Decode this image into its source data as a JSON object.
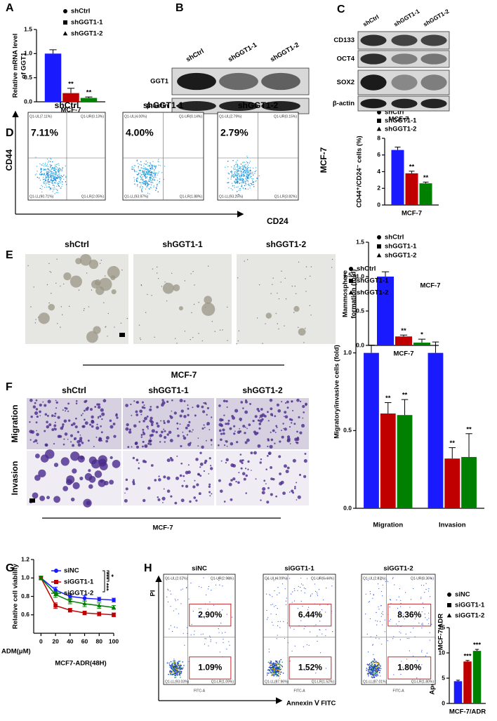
{
  "panel_labels": [
    "A",
    "B",
    "C",
    "D",
    "E",
    "F",
    "G",
    "H"
  ],
  "chart_data": [
    {
      "type": "bar",
      "ylabel": [
        "Relative mRNA level",
        "of GGT1"
      ],
      "categories": [
        "MCF-7"
      ],
      "ylim": [
        0,
        1.5
      ],
      "yticks": [
        {
          "value": 0,
          "label": "0.0"
        },
        0.5,
        {
          "value": 1,
          "label": "1.0"
        },
        1.5
      ],
      "series": [
        {
          "name": "shCtrl",
          "color": "#1a1aff",
          "marker": "circle",
          "values": [
            1.0
          ],
          "errors": [
            0.08
          ],
          "annotations": [
            null
          ]
        },
        {
          "name": "shGGT1-1",
          "color": "#c00000",
          "marker": "square",
          "values": [
            0.18
          ],
          "errors": [
            0.1
          ],
          "annotations": [
            "**"
          ]
        },
        {
          "name": "shGGT1-2",
          "color": "#008000",
          "marker": "triangle",
          "values": [
            0.08
          ],
          "errors": [
            0.02
          ],
          "annotations": [
            "**"
          ]
        }
      ]
    },
    {
      "type": "bar",
      "ylabel": [
        "CD44⁺/CD24⁻ cells (%)"
      ],
      "categories": [
        "MCF-7"
      ],
      "ylim": [
        0,
        8
      ],
      "yticks": [
        0,
        2,
        4,
        6,
        8
      ],
      "series": [
        {
          "name": "shCtrl",
          "color": "#1a1aff",
          "marker": "circle",
          "values": [
            6.6
          ],
          "errors": [
            0.35
          ],
          "annotations": [
            null
          ]
        },
        {
          "name": "shGGT1-1",
          "color": "#c00000",
          "marker": "square",
          "values": [
            3.8
          ],
          "errors": [
            0.25
          ],
          "annotations": [
            "**"
          ]
        },
        {
          "name": "shGGT1-2",
          "color": "#008000",
          "marker": "triangle",
          "values": [
            2.6
          ],
          "errors": [
            0.15
          ],
          "annotations": [
            "**"
          ]
        }
      ]
    },
    {
      "type": "bar",
      "ylabel": [
        "Mammosphere",
        "formation (fold)"
      ],
      "categories": [
        "MCF-7"
      ],
      "ylim": [
        0,
        1.5
      ],
      "yticks": [
        {
          "value": 0,
          "label": "0.0"
        },
        0.5,
        {
          "value": 1,
          "label": "1.0"
        },
        1.5
      ],
      "series": [
        {
          "name": "shCtrl",
          "color": "#1a1aff",
          "marker": "circle",
          "values": [
            1.0
          ],
          "errors": [
            0.07
          ],
          "annotations": [
            null
          ]
        },
        {
          "name": "shGGT1-1",
          "color": "#c00000",
          "marker": "square",
          "values": [
            0.13
          ],
          "errors": [
            0.02
          ],
          "annotations": [
            "**"
          ]
        },
        {
          "name": "shGGT1-2",
          "color": "#008000",
          "marker": "triangle",
          "values": [
            0.04
          ],
          "errors": [
            0.05
          ],
          "annotations": [
            "*"
          ]
        }
      ]
    },
    {
      "type": "bar",
      "ylabel": [
        "Migratory/invasive cells (fold)"
      ],
      "note": "MCF-7",
      "categories": [
        "Migration",
        "Invasion"
      ],
      "ylim": [
        0,
        1.5
      ],
      "yticks": [
        {
          "value": 0,
          "label": "0.0"
        },
        0.5,
        {
          "value": 1,
          "label": "1.0"
        },
        1.5
      ],
      "series": [
        {
          "name": "shCtrl",
          "color": "#1a1aff",
          "marker": "circle",
          "values": [
            1.0,
            1.0
          ],
          "errors": [
            0.05,
            0.07
          ],
          "annotations": [
            null,
            null
          ]
        },
        {
          "name": "shGGT1-1",
          "color": "#c00000",
          "marker": "square",
          "values": [
            0.61,
            0.32
          ],
          "errors": [
            0.07,
            0.07
          ],
          "annotations": [
            "**",
            "**"
          ]
        },
        {
          "name": "shGGT1-2",
          "color": "#008000",
          "marker": "triangle",
          "values": [
            0.6,
            0.33
          ],
          "errors": [
            0.1,
            0.15
          ],
          "annotations": [
            "**",
            "**"
          ]
        }
      ]
    },
    {
      "type": "line",
      "ylabel": [
        "Relative cell viability"
      ],
      "xlabel": "ADM(μM)",
      "subtitle": "MCF7-ADR(48H)",
      "x": [
        0,
        20,
        40,
        60,
        80,
        100
      ],
      "xlim": [
        -10,
        100
      ],
      "xticks": [
        0,
        20,
        40,
        60,
        80,
        100
      ],
      "ylim": [
        0.4,
        1.2
      ],
      "yticks": [
        0.6,
        0.8,
        {
          "value": 1,
          "label": "1.0"
        },
        1.2
      ],
      "annotations": [
        "***",
        "***",
        "*"
      ],
      "series": [
        {
          "name": "siNC",
          "color": "#1a1aff",
          "marker": "circle",
          "values": [
            1.0,
            0.87,
            0.8,
            0.78,
            0.77,
            0.76
          ],
          "errors": [
            0.02,
            0.03,
            0.03,
            0.03,
            0.02,
            0.02
          ]
        },
        {
          "name": "siGGT1-1",
          "color": "#c00000",
          "marker": "square",
          "values": [
            1.0,
            0.7,
            0.65,
            0.62,
            0.61,
            0.6
          ],
          "errors": [
            0.02,
            0.03,
            0.02,
            0.02,
            0.02,
            0.02
          ]
        },
        {
          "name": "siGGT1-2",
          "color": "#008000",
          "marker": "triangle",
          "values": [
            1.0,
            0.82,
            0.75,
            0.72,
            0.7,
            0.68
          ],
          "errors": [
            0.02,
            0.03,
            0.03,
            0.03,
            0.03,
            0.02
          ]
        }
      ]
    },
    {
      "type": "bar",
      "ylabel": [
        "Apoptotic cells(%)"
      ],
      "categories": [
        "MCF-7/ADR"
      ],
      "ylim": [
        0,
        15
      ],
      "yticks": [
        0,
        5,
        10,
        15
      ],
      "series": [
        {
          "name": "siNC",
          "color": "#1a1aff",
          "marker": "circle",
          "values": [
            4.4
          ],
          "errors": [
            0.2
          ],
          "annotations": [
            null
          ]
        },
        {
          "name": "siGGT1-1",
          "color": "#c00000",
          "marker": "square",
          "values": [
            8.3
          ],
          "errors": [
            0.2
          ],
          "annotations": [
            "***"
          ]
        },
        {
          "name": "siGGT1-2",
          "color": "#008000",
          "marker": "triangle",
          "values": [
            10.4
          ],
          "errors": [
            0.3
          ],
          "annotations": [
            "***"
          ]
        }
      ]
    }
  ],
  "blot_b": {
    "lanes": [
      "shCtrl",
      "shGGT1-1",
      "shGGT1-2"
    ],
    "rows": [
      "GGT1",
      "β-actin"
    ],
    "caption": "MCF-7"
  },
  "blot_c": {
    "lanes": [
      "shCtrl",
      "shGGT1-1",
      "shGGT1-2"
    ],
    "rows": [
      "CD133",
      "OCT4",
      "SOX2",
      "β-actin"
    ],
    "caption": "MCF-7"
  },
  "flow_d": {
    "y_axis": "CD44",
    "x_axis": "CD24",
    "side_label": "MCF-7",
    "plots": [
      {
        "title": "shCtrl",
        "percent": "7.11%",
        "quadrants": [
          "Q1-UL(7.11%)",
          "Q1-UR(0.13%)",
          "Q1-LL(90.71%)",
          "Q1-LR(2.05%)"
        ]
      },
      {
        "title": "shGGT1-1",
        "percent": "4.00%",
        "quadrants": [
          "Q1-UL(4.00%)",
          "Q1-UR(0.14%)",
          "Q1-LL(93.97%)",
          "Q1-LR(1.88%)"
        ]
      },
      {
        "title": "shGGT1-2",
        "percent": "2.79%",
        "quadrants": [
          "Q1-UL(2.79%)",
          "Q1-UR(0.15%)",
          "Q1-LL(93.25%)",
          "Q1-LR(3.82%)"
        ]
      }
    ]
  },
  "images_e": {
    "titles": [
      "shCtrl",
      "shGGT1-1",
      "shGGT1-2"
    ],
    "caption": "MCF-7"
  },
  "images_f": {
    "titles": [
      "shCtrl",
      "shGGT1-1",
      "shGGT1-2"
    ],
    "rows": [
      "Migration",
      "Invasion"
    ],
    "caption": "MCF-7"
  },
  "flow_h": {
    "y_axis": "PI",
    "x_axis": "Annexin Ⅴ FITC",
    "side_label": "MCF-7/ADR",
    "plots": [
      {
        "title": "siNC",
        "upper": "2.90%",
        "lower": "1.09%",
        "axis_name": "FITC-A",
        "quadrants": [
          "Q1-UL(2.07%)",
          "Q1-UR(2.90%)",
          "Q1-LL(93.03%)",
          "Q1-LR(1.09%)"
        ]
      },
      {
        "title": "siGGT1-1",
        "upper": "6.44%",
        "lower": "1.52%",
        "axis_name": "FITC-A",
        "quadrants": [
          "Q1-UL(4.09%)",
          "Q1-UR(6.44%)",
          "Q1-LL(87.96%)",
          "Q1-LR(1.52%)"
        ]
      },
      {
        "title": "siGGT1-2",
        "upper": "8.36%",
        "lower": "1.80%",
        "axis_name": "FITC-A",
        "quadrants": [
          "Q1-UL(2.83%)",
          "Q1-UR(8.36%)",
          "Q1-LL(87.01%)",
          "Q1-LR(1.80%)"
        ]
      }
    ]
  }
}
